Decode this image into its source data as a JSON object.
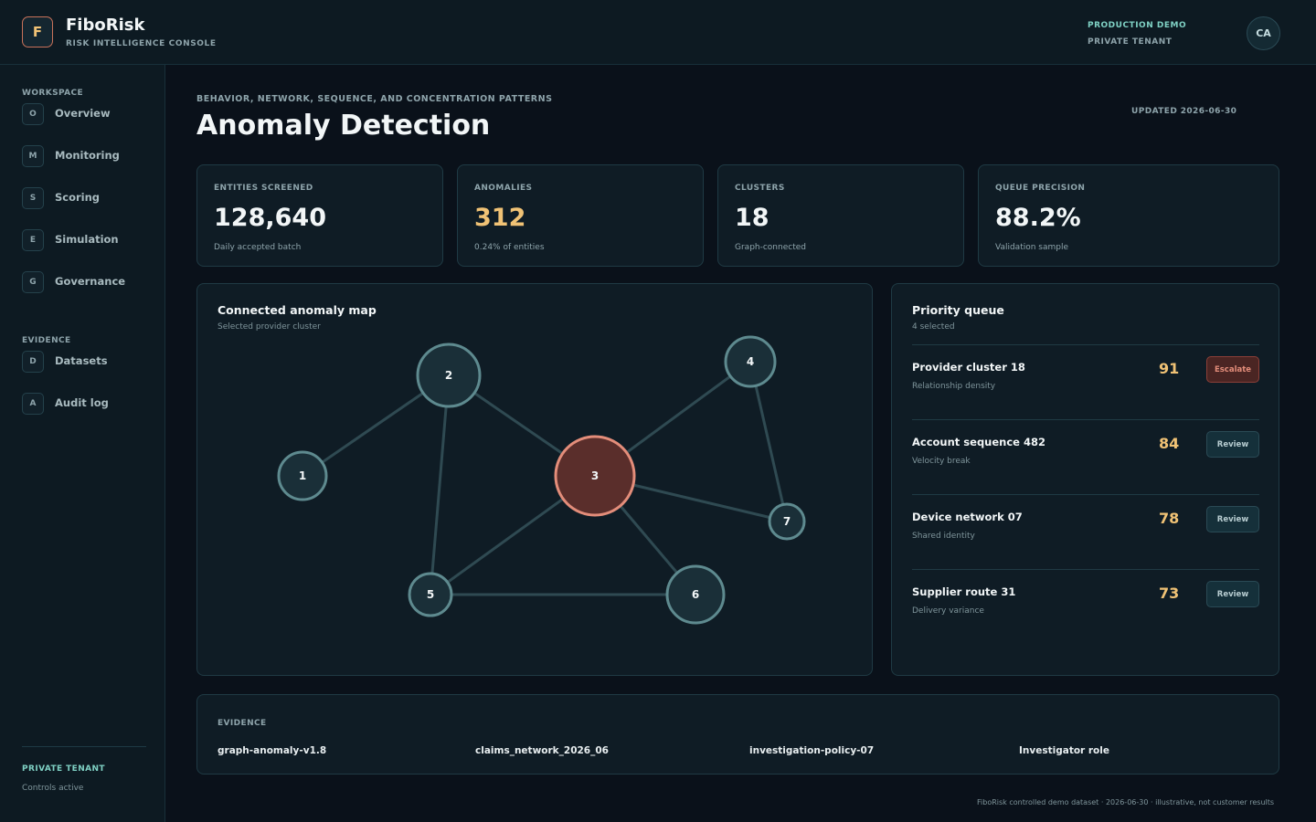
{
  "app": {
    "logo_letter": "F",
    "name": "FiboRisk",
    "subtitle": "RISK INTELLIGENCE CONSOLE",
    "environment": "PRODUCTION DEMO",
    "tenant": "PRIVATE TENANT",
    "user_initials": "CA"
  },
  "sidebar": {
    "workspace_label": "WORKSPACE",
    "workspace_items": [
      {
        "key": "O",
        "label": "Overview"
      },
      {
        "key": "M",
        "label": "Monitoring"
      },
      {
        "key": "S",
        "label": "Scoring"
      },
      {
        "key": "E",
        "label": "Simulation"
      },
      {
        "key": "G",
        "label": "Governance"
      }
    ],
    "evidence_label": "EVIDENCE",
    "evidence_items": [
      {
        "key": "D",
        "label": "Datasets"
      },
      {
        "key": "A",
        "label": "Audit log"
      }
    ],
    "tenant_title": "PRIVATE TENANT",
    "tenant_status": "Controls active"
  },
  "page": {
    "eyebrow": "BEHAVIOR, NETWORK, SEQUENCE, AND CONCENTRATION PATTERNS",
    "title": "Anomaly Detection",
    "updated": "UPDATED 2026-06-30"
  },
  "kpis": [
    {
      "label": "ENTITIES SCREENED",
      "value": "128,640",
      "note": "Daily accepted batch"
    },
    {
      "label": "ANOMALIES",
      "value": "312",
      "note": "0.24% of entities"
    },
    {
      "label": "CLUSTERS",
      "value": "18",
      "note": "Graph-connected"
    },
    {
      "label": "QUEUE PRECISION",
      "value": "88.2%",
      "note": "Validation sample"
    }
  ],
  "graph_panel": {
    "title": "Connected anomaly map",
    "subtitle": "Selected provider cluster",
    "nodes": [
      {
        "id": "1",
        "highlight": false
      },
      {
        "id": "2",
        "highlight": false
      },
      {
        "id": "3",
        "highlight": true
      },
      {
        "id": "4",
        "highlight": false
      },
      {
        "id": "5",
        "highlight": false
      },
      {
        "id": "6",
        "highlight": false
      },
      {
        "id": "7",
        "highlight": false
      }
    ],
    "edges": [
      [
        "1",
        "2"
      ],
      [
        "2",
        "3"
      ],
      [
        "2",
        "5"
      ],
      [
        "3",
        "4"
      ],
      [
        "3",
        "7"
      ],
      [
        "4",
        "7"
      ],
      [
        "3",
        "5"
      ],
      [
        "3",
        "6"
      ],
      [
        "5",
        "6"
      ]
    ]
  },
  "queue": {
    "title": "Priority queue",
    "subtitle": "4 selected",
    "items": [
      {
        "name": "Provider cluster 18",
        "desc": "Relationship density",
        "score": "91",
        "action": "Escalate"
      },
      {
        "name": "Account sequence 482",
        "desc": "Velocity break",
        "score": "84",
        "action": "Review"
      },
      {
        "name": "Device network 07",
        "desc": "Shared identity",
        "score": "78",
        "action": "Review"
      },
      {
        "name": "Supplier route 31",
        "desc": "Delivery variance",
        "score": "73",
        "action": "Review"
      }
    ]
  },
  "evidence": {
    "label": "EVIDENCE",
    "items": [
      "graph-anomaly-v1.8",
      "claims_network_2026_06",
      "investigation-policy-07",
      "Investigator role"
    ]
  },
  "footer": "FiboRisk controlled demo dataset · 2026-06-30 · illustrative, not customer results",
  "colors": {
    "accent_teal": "#7fd1c4",
    "warn_amber": "#f0c275",
    "alert_red": "#e38d7a",
    "node_stroke": "#5e8a8f",
    "highlight_fill": "#5a2e2b"
  }
}
